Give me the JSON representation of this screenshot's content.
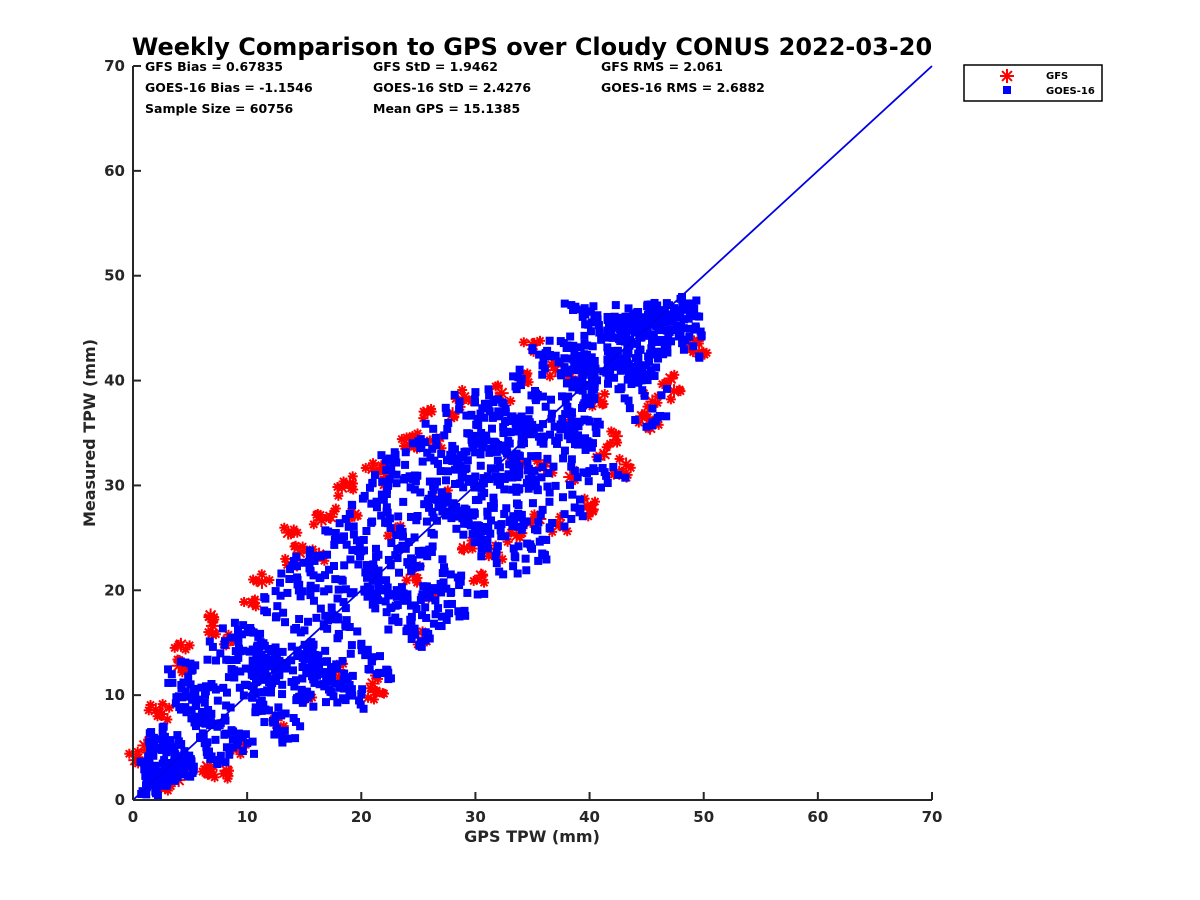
{
  "chart_data": {
    "type": "scatter",
    "title": "Weekly Comparison to GPS over Cloudy CONUS 2022-03-20",
    "xlabel": "GPS TPW (mm)",
    "ylabel": "Measured TPW (mm)",
    "xlim": [
      0,
      70
    ],
    "ylim": [
      0,
      70
    ],
    "xticks": [
      "0",
      "10",
      "20",
      "30",
      "40",
      "50",
      "60",
      "70"
    ],
    "yticks": [
      "0",
      "10",
      "20",
      "30",
      "40",
      "50",
      "60",
      "70"
    ],
    "grid": false,
    "legend_position": "outside-top-right",
    "stats": [
      [
        "GFS Bias = 0.67835",
        "GFS StD = 1.9462",
        "GFS RMS = 2.061"
      ],
      [
        "GOES-16 Bias = -1.1546",
        "GOES-16 StD = 2.4276",
        "GOES-16 RMS = 2.6882"
      ],
      [
        "Sample Size = 60756",
        "Mean GPS = 15.1385",
        ""
      ]
    ],
    "reference_line": {
      "x": [
        0,
        70
      ],
      "y": [
        0,
        70
      ],
      "color": "#0000e6"
    },
    "series": [
      {
        "name": "GFS",
        "marker": "asterisk",
        "color": "#ff0000",
        "points": [
          [
            0.2,
            3.8
          ],
          [
            1.0,
            5.2
          ],
          [
            2.0,
            8.6
          ],
          [
            2.5,
            8.2
          ],
          [
            4.2,
            14.8
          ],
          [
            4.0,
            12.8
          ],
          [
            6.8,
            17.6
          ],
          [
            7.0,
            16.6
          ],
          [
            8.3,
            15.2
          ],
          [
            10.5,
            18.8
          ],
          [
            11.3,
            20.8
          ],
          [
            13.6,
            25.5
          ],
          [
            14.0,
            22.3
          ],
          [
            16.5,
            26.7
          ],
          [
            17.3,
            27.0
          ],
          [
            18.3,
            29.8
          ],
          [
            19.0,
            30.2
          ],
          [
            19.4,
            27.2
          ],
          [
            21.0,
            31.6
          ],
          [
            22.2,
            30.8
          ],
          [
            23.0,
            25.8
          ],
          [
            24.2,
            33.8
          ],
          [
            24.8,
            34.2
          ],
          [
            25.8,
            37.0
          ],
          [
            26.6,
            34.3
          ],
          [
            28.0,
            36.8
          ],
          [
            29.0,
            38.4
          ],
          [
            32.3,
            38.8
          ],
          [
            34.2,
            39.9
          ],
          [
            35.0,
            43.4
          ],
          [
            37.0,
            41.0
          ],
          [
            38.6,
            39.8
          ],
          [
            40.8,
            38.2
          ],
          [
            41.3,
            33.0
          ],
          [
            42.3,
            34.7
          ],
          [
            44.6,
            36.6
          ],
          [
            45.5,
            38.0
          ],
          [
            45.3,
            35.5
          ],
          [
            47.1,
            40.2
          ],
          [
            47.4,
            39.0
          ],
          [
            48.8,
            43.3
          ],
          [
            49.6,
            42.7
          ],
          [
            21.2,
            10.3
          ],
          [
            21.0,
            11.1
          ],
          [
            25.5,
            15.5
          ],
          [
            30.5,
            21.4
          ],
          [
            31.8,
            23.6
          ],
          [
            33.6,
            25.2
          ],
          [
            35.6,
            26.8
          ],
          [
            37.4,
            26.3
          ],
          [
            39.8,
            28.0
          ],
          [
            40.2,
            27.7
          ],
          [
            18.0,
            12.4
          ],
          [
            15.2,
            9.8
          ],
          [
            29.0,
            24.0
          ],
          [
            36.0,
            31.8
          ],
          [
            43.2,
            32.0
          ],
          [
            42.6,
            31.2
          ],
          [
            38.3,
            30.8
          ],
          [
            26.0,
            20.0
          ],
          [
            12.5,
            7.6
          ],
          [
            9.6,
            5.0
          ],
          [
            6.5,
            3.2
          ],
          [
            4.0,
            1.9
          ],
          [
            2.4,
            1.2
          ],
          [
            8.2,
            2.8
          ],
          [
            6.6,
            2.6
          ],
          [
            16.3,
            23.4
          ],
          [
            14.6,
            23.6
          ],
          [
            24.5,
            21.5
          ],
          [
            33.5,
            32.3
          ],
          [
            37.8,
            36.0
          ],
          [
            27.3,
            29.0
          ]
        ]
      },
      {
        "name": "GOES-16",
        "marker": "square",
        "color": "#0000ff",
        "points": [
          [
            38.4,
            47.2
          ],
          [
            39.8,
            46.6
          ],
          [
            41.6,
            45.8
          ],
          [
            42.3,
            47.2
          ],
          [
            45.5,
            47.2
          ],
          [
            44.2,
            46.1
          ],
          [
            49.6,
            46.1
          ],
          [
            49.8,
            44.2
          ],
          [
            48.3,
            43.9
          ],
          [
            49.6,
            42.3
          ],
          [
            46.0,
            42.1
          ],
          [
            45.3,
            40.6
          ],
          [
            46.3,
            38.6
          ],
          [
            45.8,
            36.1
          ],
          [
            40.2,
            38.2
          ],
          [
            40.6,
            35.0
          ],
          [
            41.0,
            29.8
          ],
          [
            42.5,
            31.0
          ],
          [
            39.2,
            27.8
          ],
          [
            38.4,
            26.8
          ],
          [
            36.5,
            25.9
          ],
          [
            36.2,
            24.8
          ],
          [
            36.0,
            23.4
          ],
          [
            35.5,
            22.8
          ],
          [
            33.7,
            21.6
          ],
          [
            33.3,
            22.3
          ],
          [
            30.2,
            19.6
          ],
          [
            28.5,
            18.0
          ],
          [
            28.6,
            17.5
          ],
          [
            26.0,
            15.4
          ],
          [
            25.3,
            14.6
          ],
          [
            26.8,
            16.6
          ],
          [
            22.6,
            11.6
          ],
          [
            20.0,
            10.1
          ],
          [
            17.9,
            9.3
          ],
          [
            20.2,
            8.7
          ],
          [
            21.8,
            12.1
          ],
          [
            18.4,
            9.7
          ],
          [
            13.3,
            6.6
          ],
          [
            14.2,
            5.9
          ],
          [
            15.8,
            8.9
          ],
          [
            10.6,
            4.4
          ],
          [
            8.1,
            3.6
          ],
          [
            5.3,
            2.8
          ],
          [
            3.2,
            2.0
          ],
          [
            2.1,
            2.4
          ],
          [
            0.8,
            3.6
          ],
          [
            1.8,
            5.8
          ],
          [
            3.8,
            9.8
          ],
          [
            3.4,
            12.0
          ],
          [
            4.2,
            13.2
          ],
          [
            7.0,
            14.6
          ],
          [
            8.6,
            15.5
          ],
          [
            9.2,
            16.2
          ],
          [
            10.2,
            16.0
          ],
          [
            11.6,
            19.2
          ],
          [
            13.0,
            21.6
          ],
          [
            14.3,
            23.2
          ],
          [
            15.5,
            23.8
          ],
          [
            17.1,
            25.6
          ],
          [
            18.1,
            26.4
          ],
          [
            19.2,
            28.1
          ],
          [
            20.3,
            29.0
          ],
          [
            21.2,
            31.0
          ],
          [
            22.3,
            32.4
          ],
          [
            23.0,
            32.9
          ],
          [
            25.0,
            34.2
          ],
          [
            26.3,
            35.4
          ],
          [
            27.4,
            37.4
          ],
          [
            28.6,
            38.0
          ],
          [
            30.0,
            38.9
          ],
          [
            31.2,
            38.6
          ],
          [
            33.3,
            40.4
          ],
          [
            35.0,
            43.1
          ],
          [
            36.5,
            43.8
          ],
          [
            38.3,
            44.2
          ],
          [
            43.8,
            45.4
          ],
          [
            46.8,
            43.0
          ],
          [
            43.1,
            41.4
          ],
          [
            44.2,
            39.8
          ],
          [
            39.0,
            42.0
          ],
          [
            30.5,
            35.0
          ],
          [
            34.0,
            36.0
          ],
          [
            24.5,
            30.6
          ],
          [
            27.0,
            33.0
          ],
          [
            16.8,
            12.2
          ],
          [
            23.2,
            18.6
          ],
          [
            31.3,
            25.4
          ],
          [
            35.3,
            30.0
          ],
          [
            40.2,
            33.6
          ],
          [
            12.1,
            11.0
          ],
          [
            6.1,
            8.4
          ],
          [
            2.6,
            6.3
          ],
          [
            1.2,
            1.2
          ],
          [
            3.6,
            3.6
          ],
          [
            11.3,
            13.2
          ]
        ]
      }
    ]
  },
  "stats_table": [
    [
      "GFS Bias = 0.67835",
      "GFS StD = 1.9462",
      "GFS RMS = 2.061"
    ],
    [
      "GOES-16 Bias = -1.1546",
      "GOES-16 StD = 2.4276",
      "GOES-16 RMS = 2.6882"
    ],
    [
      "Sample Size = 60756",
      "Mean GPS = 15.1385",
      ""
    ]
  ],
  "legend": {
    "items": [
      "GFS",
      "GOES-16"
    ]
  }
}
